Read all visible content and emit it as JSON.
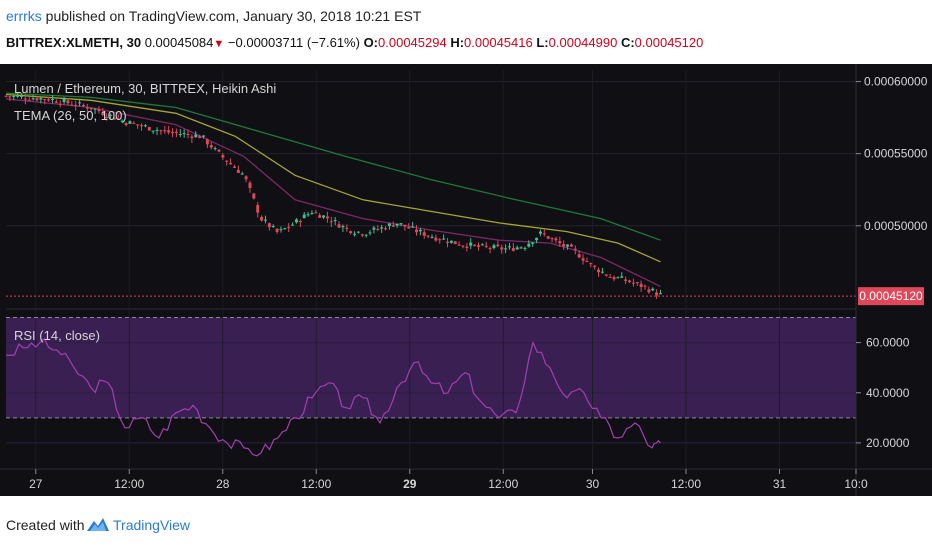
{
  "header": {
    "username": "errrks",
    "published_text": "published on TradingView.com, January 30, 2018 10:21 EST",
    "symbol": "BITTREX:XLMETH, 30",
    "price": "0.00045084",
    "down_arrow": "▼",
    "change": "−0.00003711 (−7.61%)",
    "o_label": "O:",
    "o_value": "0.00045294",
    "h_label": "H:",
    "h_value": "0.00045416",
    "l_label": "L:",
    "l_value": "0.00044990",
    "c_label": "C:",
    "c_value": "0.00045120"
  },
  "footer": {
    "created_with": "Created with",
    "brand": "TradingView"
  },
  "colors": {
    "background": "#0f0f14",
    "candle_up": "#3fbf92",
    "candle_down": "#e0485a",
    "tema_26": "#7b2a66",
    "tema_50": "#a5a632",
    "tema_100": "#1f7a3a",
    "rsi_line": "#a33fb0",
    "rsi_band": "#3a1f52",
    "price_tag": "#e0485a"
  },
  "chart_data": [
    {
      "type": "candlestick",
      "title": "Lumen / Ethereum, 30, BITTREX, Heikin Ashi",
      "indicator_label": "TEMA (26, 50, 100)",
      "x_tick_labels": [
        "27",
        "12:00",
        "28",
        "12:00",
        "29",
        "12:00",
        "30",
        "12:00",
        "31",
        "10:0"
      ],
      "x_tick_positions": [
        0.035,
        0.145,
        0.255,
        0.365,
        0.475,
        0.585,
        0.69,
        0.8,
        0.91,
        1.0
      ],
      "y_tick_labels": [
        "0.00060000",
        "0.00055000",
        "0.00050000"
      ],
      "y_tick_values": [
        0.0006,
        0.00055,
        0.0005
      ],
      "ylim": [
        0.000443,
        0.000608
      ],
      "last_price": 0.0004512,
      "last_price_label": "0.00045120",
      "close_path": [
        [
          0.0,
          0.00059
        ],
        [
          0.05,
          0.000588
        ],
        [
          0.1,
          0.000582
        ],
        [
          0.14,
          0.000572
        ],
        [
          0.19,
          0.000565
        ],
        [
          0.23,
          0.000562
        ],
        [
          0.25,
          0.00055
        ],
        [
          0.28,
          0.000535
        ],
        [
          0.3,
          0.000505
        ],
        [
          0.32,
          0.000495
        ],
        [
          0.34,
          0.000502
        ],
        [
          0.36,
          0.00051
        ],
        [
          0.38,
          0.000505
        ],
        [
          0.4,
          0.000498
        ],
        [
          0.42,
          0.000495
        ],
        [
          0.44,
          0.000498
        ],
        [
          0.46,
          0.000502
        ],
        [
          0.48,
          0.000497
        ],
        [
          0.5,
          0.000493
        ],
        [
          0.53,
          0.000488
        ],
        [
          0.56,
          0.000485
        ],
        [
          0.59,
          0.000484
        ],
        [
          0.61,
          0.000486
        ],
        [
          0.63,
          0.000495
        ],
        [
          0.65,
          0.000488
        ],
        [
          0.67,
          0.000482
        ],
        [
          0.69,
          0.000472
        ],
        [
          0.71,
          0.000465
        ],
        [
          0.73,
          0.000462
        ],
        [
          0.75,
          0.000458
        ],
        [
          0.77,
          0.000452
        ]
      ],
      "series": [
        {
          "name": "TEMA 26",
          "x": [
            0.0,
            0.1,
            0.2,
            0.28,
            0.34,
            0.42,
            0.5,
            0.58,
            0.64,
            0.7,
            0.77
          ],
          "values": [
            0.000588,
            0.000582,
            0.00057,
            0.000548,
            0.000518,
            0.000505,
            0.000497,
            0.00049,
            0.000488,
            0.000478,
            0.000458
          ]
        },
        {
          "name": "TEMA 50",
          "x": [
            0.0,
            0.1,
            0.2,
            0.27,
            0.34,
            0.42,
            0.5,
            0.58,
            0.66,
            0.72,
            0.77
          ],
          "values": [
            0.000591,
            0.000587,
            0.000578,
            0.000562,
            0.000535,
            0.000518,
            0.00051,
            0.000502,
            0.000496,
            0.000488,
            0.000475
          ]
        },
        {
          "name": "TEMA 100",
          "x": [
            0.0,
            0.1,
            0.2,
            0.3,
            0.4,
            0.5,
            0.6,
            0.7,
            0.77
          ],
          "values": [
            0.000592,
            0.000589,
            0.000582,
            0.000565,
            0.000548,
            0.000532,
            0.000518,
            0.000505,
            0.00049
          ]
        }
      ]
    },
    {
      "type": "line",
      "title": "RSI (14, close)",
      "y_tick_labels": [
        "60.0000",
        "40.0000",
        "20.0000"
      ],
      "y_tick_values": [
        60,
        40,
        20
      ],
      "ylim": [
        10,
        73
      ],
      "bands": [
        70,
        30
      ],
      "rsi_path": [
        [
          0.0,
          55
        ],
        [
          0.02,
          58
        ],
        [
          0.04,
          60
        ],
        [
          0.06,
          57
        ],
        [
          0.08,
          50
        ],
        [
          0.1,
          42
        ],
        [
          0.12,
          44
        ],
        [
          0.14,
          26
        ],
        [
          0.16,
          30
        ],
        [
          0.18,
          22
        ],
        [
          0.2,
          32
        ],
        [
          0.22,
          35
        ],
        [
          0.24,
          26
        ],
        [
          0.26,
          20
        ],
        [
          0.28,
          18
        ],
        [
          0.3,
          16
        ],
        [
          0.32,
          22
        ],
        [
          0.34,
          30
        ],
        [
          0.36,
          38
        ],
        [
          0.38,
          44
        ],
        [
          0.4,
          34
        ],
        [
          0.42,
          38
        ],
        [
          0.44,
          28
        ],
        [
          0.46,
          42
        ],
        [
          0.48,
          52
        ],
        [
          0.5,
          44
        ],
        [
          0.52,
          40
        ],
        [
          0.54,
          48
        ],
        [
          0.56,
          36
        ],
        [
          0.58,
          30
        ],
        [
          0.6,
          32
        ],
        [
          0.62,
          60
        ],
        [
          0.64,
          50
        ],
        [
          0.66,
          38
        ],
        [
          0.68,
          40
        ],
        [
          0.7,
          30
        ],
        [
          0.72,
          22
        ],
        [
          0.74,
          28
        ],
        [
          0.76,
          18
        ],
        [
          0.77,
          20
        ]
      ]
    }
  ]
}
